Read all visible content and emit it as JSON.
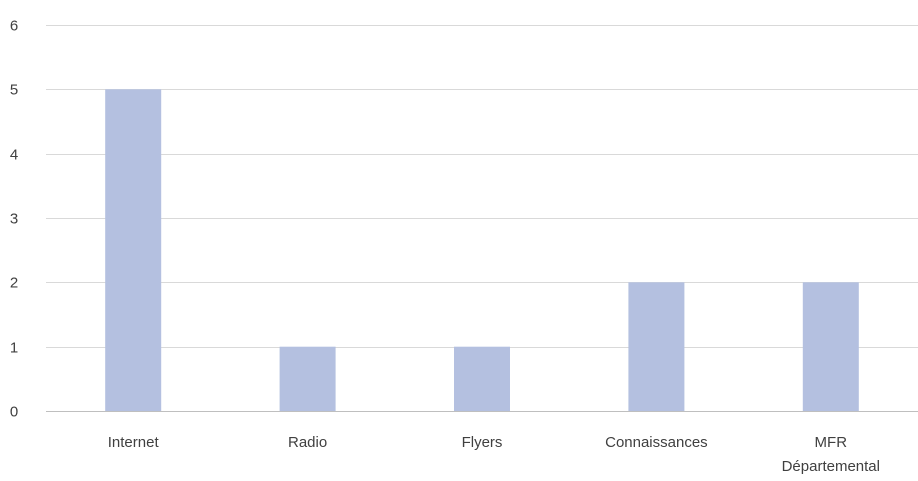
{
  "chart_data": {
    "type": "bar",
    "categories": [
      "Internet",
      "Radio",
      "Flyers",
      "Connaissances",
      "MFR Départemental"
    ],
    "category_lines": [
      [
        "Internet"
      ],
      [
        "Radio"
      ],
      [
        "Flyers"
      ],
      [
        "Connaissances"
      ],
      [
        "MFR",
        "Départemental"
      ]
    ],
    "values": [
      5,
      1,
      1,
      2,
      2
    ],
    "title": "",
    "xlabel": "",
    "ylabel": "",
    "ylim": [
      0,
      6
    ],
    "yticks": [
      0,
      1,
      2,
      3,
      4,
      5,
      6
    ],
    "grid": true,
    "legend": "none",
    "bar_color": "#b4c0e0",
    "grid_color": "#d9d9d9",
    "axis_color": "#bfbfbf",
    "label_color": "#404040"
  }
}
